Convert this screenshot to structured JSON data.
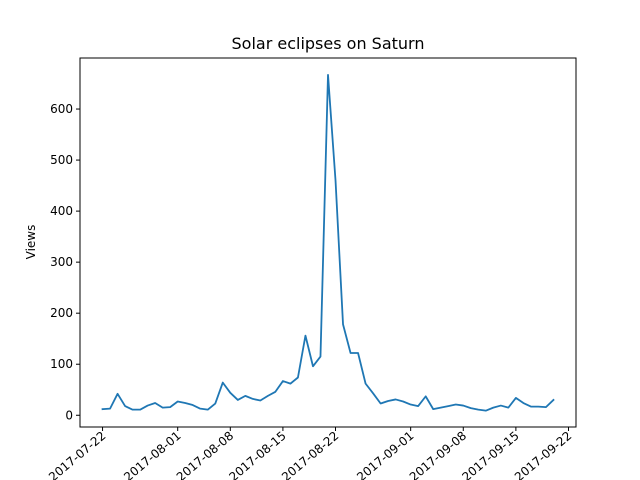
{
  "chart_data": {
    "type": "line",
    "title": "Solar eclipses on Saturn",
    "xlabel": "",
    "ylabel": "Views",
    "x_type": "date",
    "x": [
      "2017-07-22",
      "2017-07-23",
      "2017-07-24",
      "2017-07-25",
      "2017-07-26",
      "2017-07-27",
      "2017-07-28",
      "2017-07-29",
      "2017-07-30",
      "2017-07-31",
      "2017-08-01",
      "2017-08-02",
      "2017-08-03",
      "2017-08-04",
      "2017-08-05",
      "2017-08-06",
      "2017-08-07",
      "2017-08-08",
      "2017-08-09",
      "2017-08-10",
      "2017-08-11",
      "2017-08-12",
      "2017-08-13",
      "2017-08-14",
      "2017-08-15",
      "2017-08-16",
      "2017-08-17",
      "2017-08-18",
      "2017-08-19",
      "2017-08-20",
      "2017-08-21",
      "2017-08-22",
      "2017-08-23",
      "2017-08-24",
      "2017-08-25",
      "2017-08-26",
      "2017-08-27",
      "2017-08-28",
      "2017-08-29",
      "2017-08-30",
      "2017-08-31",
      "2017-09-01",
      "2017-09-02",
      "2017-09-03",
      "2017-09-04",
      "2017-09-05",
      "2017-09-06",
      "2017-09-07",
      "2017-09-08",
      "2017-09-09",
      "2017-09-10",
      "2017-09-11",
      "2017-09-12",
      "2017-09-13",
      "2017-09-14",
      "2017-09-15",
      "2017-09-16",
      "2017-09-17",
      "2017-09-18",
      "2017-09-19",
      "2017-09-20"
    ],
    "series": [
      {
        "values": [
          12,
          13,
          42,
          18,
          11,
          11,
          19,
          24,
          15,
          16,
          27,
          24,
          20,
          13,
          11,
          23,
          64,
          44,
          30,
          38,
          32,
          29,
          38,
          46,
          67,
          62,
          74,
          156,
          96,
          115,
          667,
          460,
          178,
          122,
          122,
          62,
          43,
          23,
          28,
          31,
          27,
          21,
          18,
          37,
          12,
          15,
          18,
          21,
          19,
          14,
          11,
          9,
          15,
          19,
          15,
          34,
          24,
          17,
          17,
          16,
          30
        ],
        "color": "#1f77b4"
      }
    ],
    "x_ticks": [
      "2017-07-22",
      "2017-08-01",
      "2017-08-08",
      "2017-08-15",
      "2017-08-22",
      "2017-09-01",
      "2017-09-08",
      "2017-09-15",
      "2017-09-22"
    ],
    "x_tick_labels": [
      "2017-07-22",
      "2017-08-01",
      "2017-08-08",
      "2017-08-15",
      "2017-08-22",
      "2017-09-01",
      "2017-09-08",
      "2017-09-15",
      "2017-09-22"
    ],
    "y_ticks": [
      0,
      100,
      200,
      300,
      400,
      500,
      600
    ],
    "xlim": [
      "2017-07-19",
      "2017-09-23"
    ],
    "ylim": [
      -23,
      700
    ],
    "grid": false,
    "legend": "none"
  }
}
